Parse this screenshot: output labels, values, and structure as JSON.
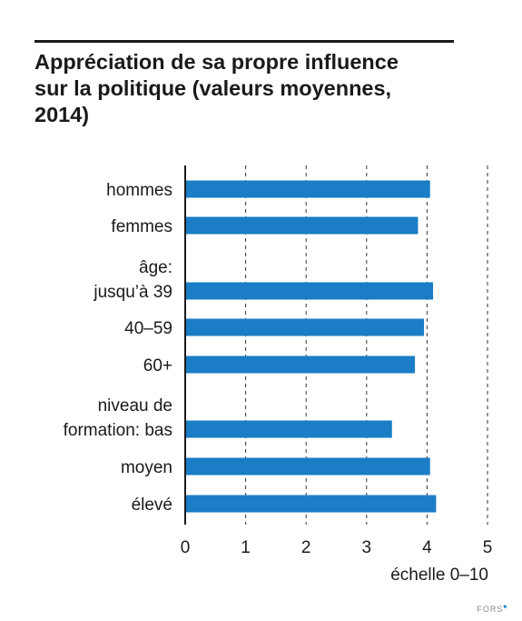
{
  "header": {
    "title_lines": [
      "Appréciation de sa propre influence",
      "sur la politique (valeurs moyennes,",
      "2014)"
    ]
  },
  "chart_data": {
    "type": "bar",
    "orientation": "horizontal",
    "title": "Appréciation de sa propre influence sur la politique (valeurs moyennes, 2014)",
    "xlabel": "échelle 0–10",
    "ylabel": "",
    "xlim": [
      0,
      5
    ],
    "xticks": [
      0,
      1,
      2,
      3,
      4,
      5
    ],
    "grid": "vertical dashed",
    "bar_color": "#1a7dc5",
    "categories": [
      [
        "hommes"
      ],
      [
        "femmes"
      ],
      [
        "âge:",
        "jusqu’à 39"
      ],
      [
        "40–59"
      ],
      [
        "60+"
      ],
      [
        "niveau de",
        "formation: bas"
      ],
      [
        "moyen"
      ],
      [
        "élevé"
      ]
    ],
    "values": [
      4.05,
      3.85,
      4.1,
      3.95,
      3.8,
      3.42,
      4.05,
      4.15
    ]
  },
  "footer": {
    "logo": "FORS"
  }
}
